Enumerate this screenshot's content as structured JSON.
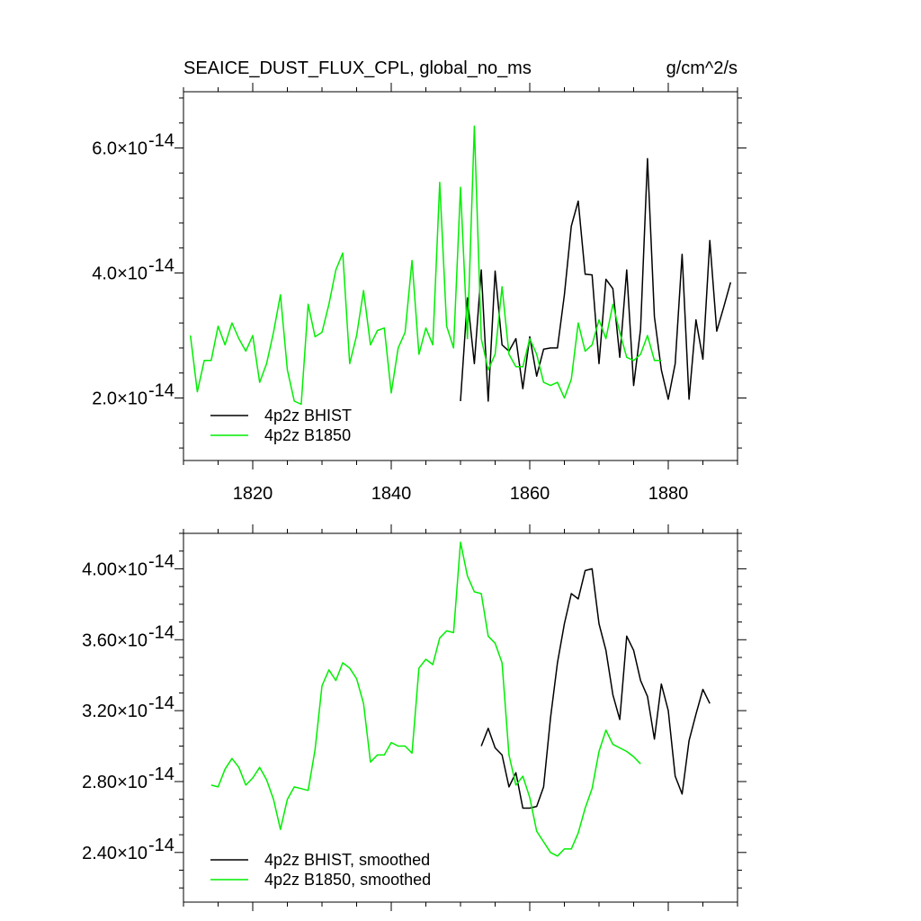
{
  "header": {
    "title": "SEAICE_DUST_FLUX_CPL, global_no_ms",
    "units": "g/cm^2/s"
  },
  "chart_data": [
    {
      "type": "line",
      "title": "SEAICE_DUST_FLUX_CPL, global_no_ms",
      "units": "g/cm^2/s",
      "xlim": [
        1810,
        1890
      ],
      "ylim": [
        1.0,
        6.9
      ],
      "y_exponent": -14,
      "x_ticks": [
        1820,
        1840,
        1860,
        1880
      ],
      "x_tick_labels": [
        "1820",
        "1840",
        "1860",
        "1880"
      ],
      "y_ticks": [
        2.0,
        4.0,
        6.0
      ],
      "y_tick_mantissas": [
        "2.0",
        "4.0",
        "6.0"
      ],
      "y_tick_exponent": "-14",
      "legend_position": "bottom-left",
      "series": [
        {
          "name": "4p2z BHIST",
          "color": "#000000",
          "x": [
            1850,
            1851,
            1852,
            1853,
            1854,
            1855,
            1856,
            1857,
            1858,
            1859,
            1860,
            1861,
            1862,
            1863,
            1864,
            1865,
            1866,
            1867,
            1868,
            1869,
            1870,
            1871,
            1872,
            1873,
            1874,
            1875,
            1876,
            1877,
            1878,
            1879,
            1880,
            1881,
            1882,
            1883,
            1884,
            1885,
            1886,
            1887,
            1888,
            1889
          ],
          "values": [
            1.95,
            3.6,
            2.55,
            4.05,
            1.95,
            4.03,
            2.85,
            2.75,
            2.95,
            2.15,
            2.98,
            2.35,
            2.78,
            2.8,
            2.8,
            3.65,
            4.75,
            5.15,
            3.98,
            3.97,
            2.55,
            3.9,
            3.75,
            2.65,
            4.05,
            2.2,
            3.1,
            5.83,
            3.3,
            2.45,
            1.98,
            2.55,
            4.3,
            1.98,
            3.25,
            2.62,
            4.52,
            3.07,
            3.45,
            3.85
          ]
        },
        {
          "name": "4p2z B1850",
          "color": "#00ee00",
          "x": [
            1811,
            1812,
            1813,
            1814,
            1815,
            1816,
            1817,
            1818,
            1819,
            1820,
            1821,
            1822,
            1823,
            1824,
            1825,
            1826,
            1827,
            1828,
            1829,
            1830,
            1831,
            1832,
            1833,
            1834,
            1835,
            1836,
            1837,
            1838,
            1839,
            1840,
            1841,
            1842,
            1843,
            1844,
            1845,
            1846,
            1847,
            1848,
            1849,
            1850,
            1851,
            1852,
            1853,
            1854,
            1855,
            1856,
            1857,
            1858,
            1859,
            1860,
            1861,
            1862,
            1863,
            1864,
            1865,
            1866,
            1867,
            1868,
            1869,
            1870,
            1871,
            1872,
            1873,
            1874,
            1875,
            1876,
            1877,
            1878,
            1879
          ],
          "values": [
            3.0,
            2.1,
            2.6,
            2.6,
            3.15,
            2.85,
            3.2,
            2.95,
            2.75,
            3.0,
            2.25,
            2.55,
            3.05,
            3.65,
            2.45,
            1.95,
            1.9,
            3.5,
            2.98,
            3.05,
            3.5,
            4.05,
            4.32,
            2.55,
            3.0,
            3.72,
            2.85,
            3.08,
            3.12,
            2.08,
            2.8,
            3.05,
            4.2,
            2.7,
            3.12,
            2.85,
            5.45,
            3.15,
            2.8,
            5.37,
            2.95,
            6.35,
            2.95,
            2.45,
            2.7,
            3.78,
            2.7,
            2.5,
            2.5,
            2.95,
            2.7,
            2.25,
            2.2,
            2.25,
            2.0,
            2.3,
            3.2,
            2.75,
            2.85,
            3.25,
            2.95,
            3.5,
            3.05,
            2.65,
            2.6,
            2.7,
            3.0,
            2.6,
            2.6
          ]
        }
      ]
    },
    {
      "type": "line",
      "title": "",
      "xlim": [
        1810,
        1890
      ],
      "ylim": [
        2.12,
        4.2
      ],
      "y_exponent": -14,
      "x_ticks": [
        1820,
        1840,
        1860,
        1880
      ],
      "x_tick_labels": [],
      "y_ticks": [
        2.4,
        2.8,
        3.2,
        3.6,
        4.0
      ],
      "y_tick_mantissas": [
        "2.40",
        "2.80",
        "3.20",
        "3.60",
        "4.00"
      ],
      "y_tick_exponent": "-14",
      "legend_position": "bottom-left",
      "series": [
        {
          "name": "4p2z BHIST, smoothed",
          "color": "#000000",
          "x": [
            1853,
            1854,
            1855,
            1856,
            1857,
            1858,
            1859,
            1860,
            1861,
            1862,
            1863,
            1864,
            1865,
            1866,
            1867,
            1868,
            1869,
            1870,
            1871,
            1872,
            1873,
            1874,
            1875,
            1876,
            1877,
            1878,
            1879,
            1880,
            1881,
            1882,
            1883,
            1884,
            1885,
            1886
          ],
          "values": [
            3.0,
            3.1,
            2.99,
            2.95,
            2.77,
            2.85,
            2.65,
            2.65,
            2.66,
            2.77,
            3.16,
            3.47,
            3.69,
            3.86,
            3.83,
            3.99,
            4.0,
            3.69,
            3.54,
            3.29,
            3.15,
            3.62,
            3.54,
            3.37,
            3.28,
            3.04,
            3.35,
            3.2,
            2.83,
            2.73,
            3.03,
            3.18,
            3.32,
            3.24
          ]
        },
        {
          "name": "4p2z B1850, smoothed",
          "color": "#00ee00",
          "x": [
            1814,
            1815,
            1816,
            1817,
            1818,
            1819,
            1820,
            1821,
            1822,
            1823,
            1824,
            1825,
            1826,
            1827,
            1828,
            1829,
            1830,
            1831,
            1832,
            1833,
            1834,
            1835,
            1836,
            1837,
            1838,
            1839,
            1840,
            1841,
            1842,
            1843,
            1844,
            1845,
            1846,
            1847,
            1848,
            1849,
            1850,
            1851,
            1852,
            1853,
            1854,
            1855,
            1856,
            1857,
            1858,
            1859,
            1860,
            1861,
            1862,
            1863,
            1864,
            1865,
            1866,
            1867,
            1868,
            1869,
            1870,
            1871,
            1872,
            1873,
            1874,
            1875,
            1876
          ],
          "values": [
            2.78,
            2.77,
            2.87,
            2.93,
            2.88,
            2.78,
            2.82,
            2.88,
            2.81,
            2.7,
            2.53,
            2.7,
            2.77,
            2.76,
            2.75,
            2.98,
            3.34,
            3.43,
            3.37,
            3.47,
            3.44,
            3.38,
            3.24,
            2.91,
            2.95,
            2.95,
            3.02,
            3.0,
            3.0,
            2.96,
            3.44,
            3.49,
            3.46,
            3.61,
            3.65,
            3.64,
            4.15,
            3.96,
            3.87,
            3.86,
            3.62,
            3.58,
            3.47,
            2.95,
            2.78,
            2.83,
            2.71,
            2.52,
            2.46,
            2.4,
            2.38,
            2.42,
            2.42,
            2.51,
            2.65,
            2.76,
            2.97,
            3.09,
            3.01,
            2.99,
            2.97,
            2.94,
            2.9
          ]
        }
      ]
    }
  ]
}
